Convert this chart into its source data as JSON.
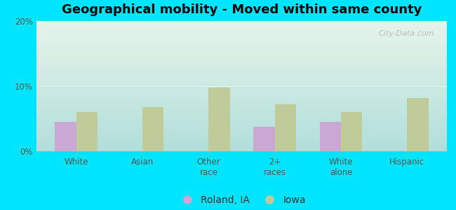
{
  "title": "Geographical mobility - Moved within same county",
  "categories": [
    "White",
    "Asian",
    "Other\nrace",
    "2+\nraces",
    "White\nalone",
    "Hispanic"
  ],
  "roland_ia": [
    4.5,
    0,
    0,
    3.8,
    4.5,
    0
  ],
  "iowa": [
    6.0,
    6.8,
    9.8,
    7.2,
    6.0,
    8.2
  ],
  "roland_color": "#c9a8d4",
  "iowa_color": "#bfcc99",
  "background_outer": "#00e5ff",
  "background_plot_top": "#e6f4ea",
  "background_plot_bottom": "#b2dfdb",
  "ylim": [
    0,
    20
  ],
  "yticks": [
    0,
    10,
    20
  ],
  "ytick_labels": [
    "0%",
    "10%",
    "20%"
  ],
  "bar_width": 0.32,
  "legend_label_roland": "Roland, IA",
  "legend_label_iowa": "Iowa",
  "title_fontsize": 13,
  "tick_fontsize": 8.5,
  "legend_fontsize": 10
}
